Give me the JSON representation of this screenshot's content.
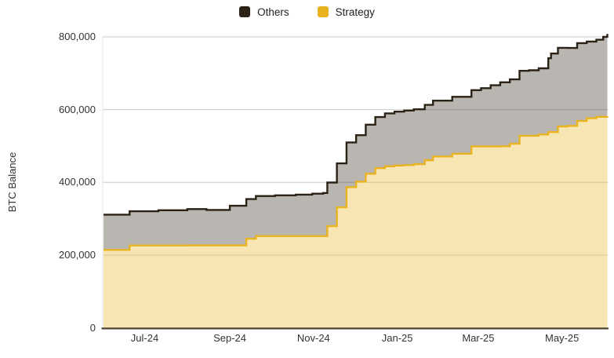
{
  "legend": {
    "items": [
      {
        "label": "Others",
        "color": "#2B2215"
      },
      {
        "label": "Strategy",
        "color": "#E9B320"
      }
    ]
  },
  "y_axis": {
    "title": "BTC Balance"
  },
  "chart_data": {
    "type": "area",
    "variant": "stacked-step",
    "ylabel": "BTC Balance",
    "ylim": [
      0,
      800000
    ],
    "grid": true,
    "grid_color": "#CBCBCB",
    "axis_line_color": "#4D4637",
    "fill_opacity": 0.33,
    "legend_position": "top-center",
    "x_domain": [
      "2024-06-01",
      "2025-06-03"
    ],
    "x_unit": "days since 2024-06-01",
    "y_ticks": [
      {
        "value": 800000,
        "label": "800,000"
      },
      {
        "value": 600000,
        "label": "600,000"
      },
      {
        "value": 400000,
        "label": "400,000"
      },
      {
        "value": 200000,
        "label": "200,000"
      },
      {
        "value": 0,
        "label": "0"
      }
    ],
    "x_ticks": [
      {
        "day": 30,
        "label": "Jul-24"
      },
      {
        "day": 92,
        "label": "Sep-24"
      },
      {
        "day": 153,
        "label": "Nov-24"
      },
      {
        "day": 214,
        "label": "Jan-25"
      },
      {
        "day": 273,
        "label": "Mar-25"
      },
      {
        "day": 334,
        "label": "May-25"
      }
    ],
    "series_order_bottom_to_top": [
      "Strategy",
      "Others"
    ],
    "points_format": [
      "day_offset",
      "strategy_btc",
      "others_btc"
    ],
    "points": [
      [
        0,
        214246,
        96800
      ],
      [
        19,
        226331,
        94000
      ],
      [
        40,
        226331,
        97000
      ],
      [
        61,
        226500,
        100000
      ],
      [
        75,
        226500,
        97500
      ],
      [
        92,
        226500,
        109000
      ],
      [
        104,
        244800,
        109000
      ],
      [
        111,
        252220,
        110000
      ],
      [
        125,
        252220,
        112000
      ],
      [
        140,
        252220,
        114000
      ],
      [
        152,
        252220,
        116500
      ],
      [
        160,
        252220,
        118500
      ],
      [
        163,
        279420,
        120000
      ],
      [
        170,
        331200,
        121000
      ],
      [
        177,
        386700,
        123000
      ],
      [
        184,
        402100,
        127500
      ],
      [
        191,
        423650,
        135000
      ],
      [
        198,
        439000,
        140500
      ],
      [
        205,
        444262,
        145500
      ],
      [
        212,
        446400,
        148000
      ],
      [
        219,
        447470,
        150000
      ],
      [
        226,
        450000,
        151000
      ],
      [
        234,
        461000,
        152000
      ],
      [
        240,
        471107,
        153500
      ],
      [
        254,
        478740,
        156500
      ],
      [
        268,
        499096,
        154500
      ],
      [
        275,
        499096,
        160000
      ],
      [
        282,
        499096,
        168000
      ],
      [
        289,
        499226,
        176000
      ],
      [
        296,
        506137,
        177000
      ],
      [
        303,
        528185,
        178500
      ],
      [
        310,
        528185,
        180000
      ],
      [
        317,
        531644,
        182000
      ],
      [
        324,
        538200,
        203000
      ],
      [
        326,
        538200,
        216000
      ],
      [
        331,
        553555,
        216500
      ],
      [
        338,
        555450,
        214000
      ],
      [
        345,
        568840,
        214000
      ],
      [
        352,
        576230,
        211000
      ],
      [
        359,
        580250,
        212000
      ],
      [
        364,
        580250,
        220000
      ],
      [
        367,
        582000,
        226000
      ]
    ]
  }
}
